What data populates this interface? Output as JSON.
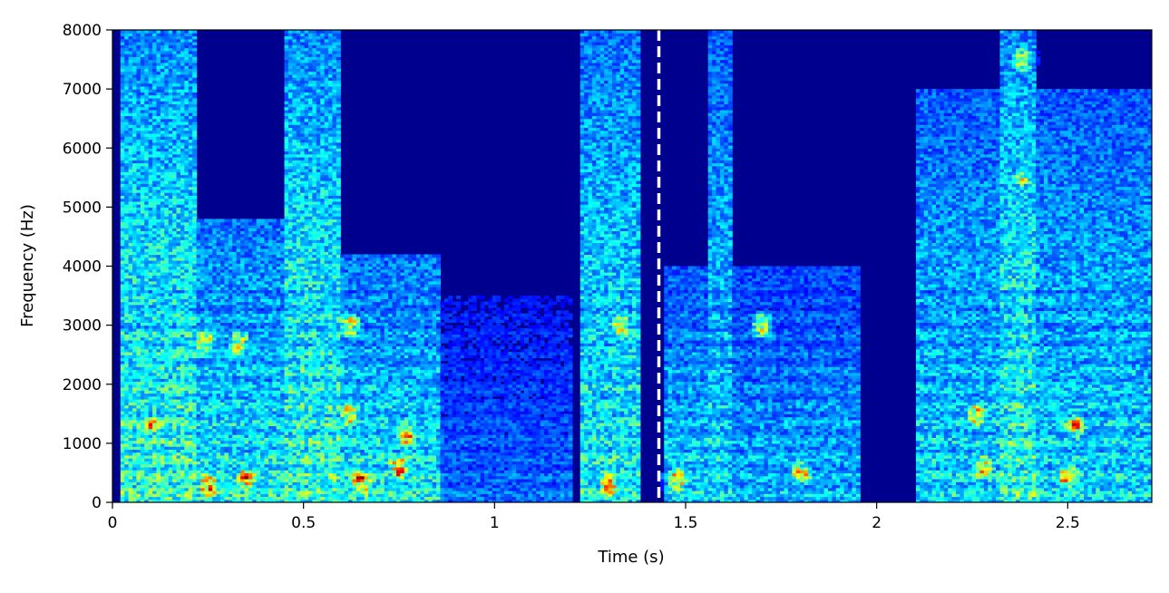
{
  "chart_data": {
    "type": "heatmap",
    "title": "",
    "xlabel": "Time (s)",
    "ylabel": "Frequency (Hz)",
    "xlim": [
      0,
      2.72
    ],
    "ylim": [
      0,
      8000
    ],
    "x_ticks": [
      0,
      0.5,
      1,
      1.5,
      2,
      2.5
    ],
    "x_tick_labels": [
      "0",
      "0.5",
      "1",
      "1.5",
      "2",
      "2.5"
    ],
    "y_ticks": [
      0,
      1000,
      2000,
      3000,
      4000,
      5000,
      6000,
      7000,
      8000
    ],
    "y_tick_labels": [
      "0",
      "1000",
      "2000",
      "3000",
      "4000",
      "5000",
      "6000",
      "7000",
      "8000"
    ],
    "grid": false,
    "colormap": "jet",
    "background_color": "#00008f",
    "marker": {
      "type": "vertical-dashed-line",
      "x": 1.43,
      "color": "#ffffff"
    },
    "segments": [
      {
        "t0": 0.02,
        "t1": 0.22,
        "fmax": 8000,
        "level": 0.55
      },
      {
        "t0": 0.2,
        "t1": 0.46,
        "fmax": 4800,
        "level": 0.5
      },
      {
        "t0": 0.45,
        "t1": 0.6,
        "fmax": 8000,
        "level": 0.55
      },
      {
        "t0": 0.6,
        "t1": 0.86,
        "fmax": 4200,
        "level": 0.5
      },
      {
        "t0": 0.86,
        "t1": 1.2,
        "fmax": 3500,
        "level": 0.3
      },
      {
        "t0": 1.22,
        "t1": 1.38,
        "fmax": 8000,
        "level": 0.5
      },
      {
        "t0": 1.44,
        "t1": 1.58,
        "fmax": 4000,
        "level": 0.45
      },
      {
        "t0": 1.56,
        "t1": 1.62,
        "fmax": 8000,
        "level": 0.45
      },
      {
        "t0": 1.62,
        "t1": 1.96,
        "fmax": 4000,
        "level": 0.4
      },
      {
        "t0": 2.1,
        "t1": 2.72,
        "fmax": 7000,
        "level": 0.45
      },
      {
        "t0": 2.32,
        "t1": 2.42,
        "fmax": 8000,
        "level": 0.55
      }
    ],
    "hotspots": [
      {
        "t": 0.24,
        "f": 2700,
        "level": 0.85
      },
      {
        "t": 0.33,
        "f": 2700,
        "level": 0.8
      },
      {
        "t": 0.25,
        "f": 300,
        "level": 1.0
      },
      {
        "t": 0.35,
        "f": 400,
        "level": 1.0
      },
      {
        "t": 0.62,
        "f": 3000,
        "level": 0.8
      },
      {
        "t": 0.62,
        "f": 1500,
        "level": 0.85
      },
      {
        "t": 0.65,
        "f": 350,
        "level": 1.0
      },
      {
        "t": 0.75,
        "f": 600,
        "level": 1.0
      },
      {
        "t": 0.77,
        "f": 1100,
        "level": 0.9
      },
      {
        "t": 0.1,
        "f": 1300,
        "level": 0.8
      },
      {
        "t": 1.33,
        "f": 3000,
        "level": 0.85
      },
      {
        "t": 1.3,
        "f": 300,
        "level": 1.0
      },
      {
        "t": 1.48,
        "f": 400,
        "level": 0.95
      },
      {
        "t": 1.7,
        "f": 3000,
        "level": 0.75
      },
      {
        "t": 1.8,
        "f": 500,
        "level": 0.85
      },
      {
        "t": 2.26,
        "f": 1500,
        "level": 0.85
      },
      {
        "t": 2.28,
        "f": 600,
        "level": 0.9
      },
      {
        "t": 2.5,
        "f": 450,
        "level": 1.0
      },
      {
        "t": 2.52,
        "f": 1300,
        "level": 0.9
      },
      {
        "t": 2.38,
        "f": 7500,
        "level": 0.7
      },
      {
        "t": 2.38,
        "f": 5500,
        "level": 0.65
      }
    ]
  }
}
